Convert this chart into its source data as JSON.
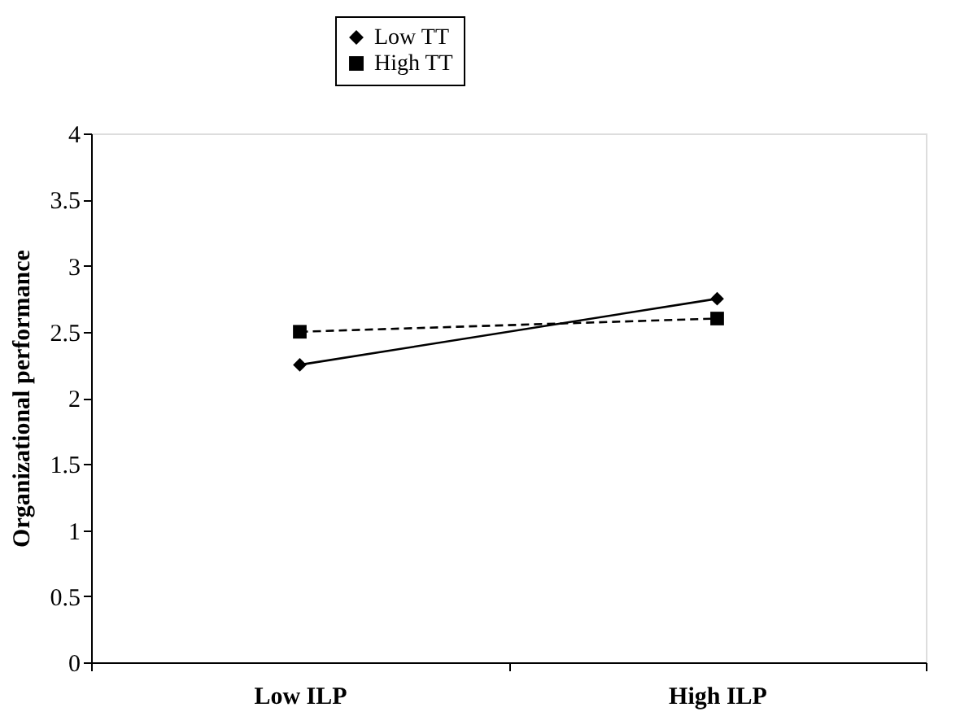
{
  "chart_data": {
    "type": "line",
    "ylabel": "Organizational performance",
    "categories": [
      "Low ILP",
      "High ILP"
    ],
    "series": [
      {
        "name": "Low TT",
        "color": "#000000",
        "values": [
          2.25,
          2.75
        ],
        "marker": "diamond",
        "line_style": "solid"
      },
      {
        "name": "High TT",
        "color": "#000000",
        "values": [
          2.5,
          2.6
        ],
        "marker": "square",
        "line_style": "dashed"
      }
    ],
    "ylim": [
      0,
      4
    ],
    "yticks": [
      0,
      0.5,
      1,
      1.5,
      2,
      2.5,
      3,
      3.5,
      4
    ],
    "grid": false,
    "legend": "top"
  }
}
